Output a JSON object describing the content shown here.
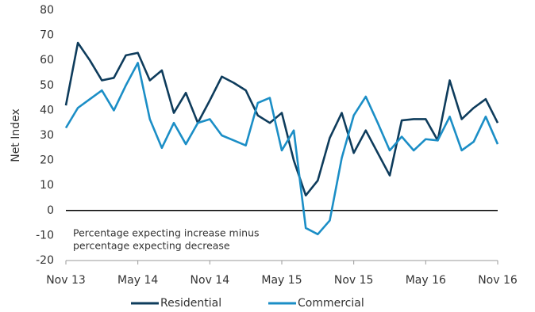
{
  "chart_data": {
    "type": "line",
    "y_label": "Net Index",
    "annotation": [
      "Percentage expecting increase minus",
      "percentage expecting decrease"
    ],
    "categories": [
      "Nov 13",
      null,
      null,
      null,
      null,
      null,
      "May 14",
      null,
      null,
      null,
      null,
      null,
      "Nov 14",
      null,
      null,
      null,
      null,
      null,
      "May 15",
      null,
      null,
      null,
      null,
      null,
      "Nov 15",
      null,
      null,
      null,
      null,
      null,
      "May 16",
      null,
      null,
      null,
      null,
      null,
      "Nov 16"
    ],
    "series": [
      {
        "name": "Residential",
        "color": "#0e3c5c",
        "values": [
          42,
          67,
          60,
          52,
          53,
          62,
          63,
          52,
          56,
          39,
          47,
          35,
          44,
          53.5,
          51,
          48,
          38,
          35,
          39,
          20,
          6,
          12,
          29,
          39,
          23,
          32,
          23,
          14,
          36,
          36.5,
          36.5,
          28,
          52,
          36.5,
          41,
          44.5,
          35
        ]
      },
      {
        "name": "Commercial",
        "color": "#1b8ec6",
        "values": [
          33,
          41,
          44.5,
          48,
          40,
          50,
          59,
          36.5,
          25,
          35,
          26.5,
          35,
          36.5,
          30,
          28,
          26,
          43,
          45,
          24,
          32,
          -7,
          -9.5,
          -4,
          21,
          38,
          45.5,
          35,
          24,
          29.5,
          24,
          28.5,
          28,
          37.5,
          24,
          27.5,
          37.5,
          26.5
        ]
      }
    ],
    "ylim": [
      -20,
      80
    ],
    "yticks": [
      -20,
      -10,
      0,
      10,
      20,
      30,
      40,
      50,
      60,
      70,
      80
    ],
    "grid": false,
    "legend": "bottom"
  }
}
